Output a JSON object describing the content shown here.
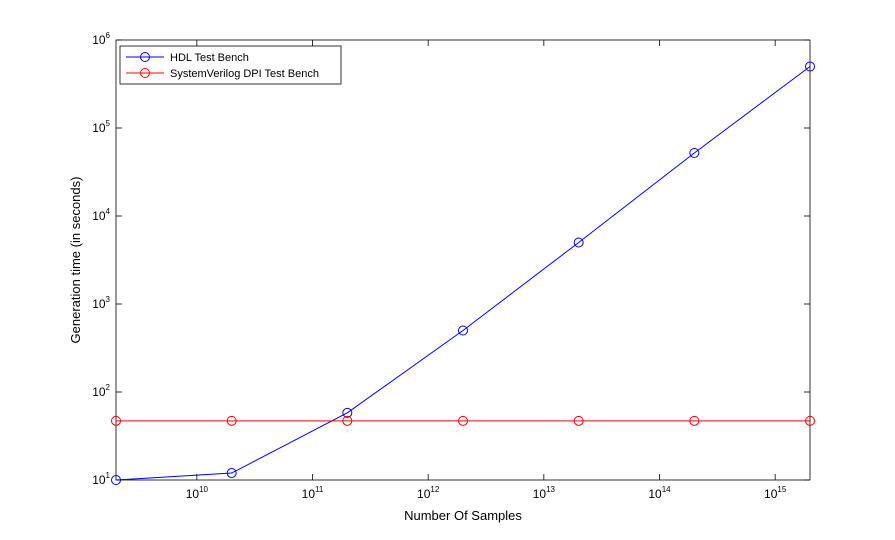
{
  "chart_data": {
    "type": "line",
    "xlabel": "Number Of Samples",
    "ylabel": "Generation time (in seconds)",
    "x": [
      2000000000,
      20000000000,
      200000000000,
      2000000000000,
      20000000000000,
      200000000000000,
      2000000000000000
    ],
    "series": [
      {
        "name": "HDL Test Bench",
        "color": "#0000ff",
        "values": [
          10,
          12,
          58,
          500,
          5000,
          52000,
          500000
        ]
      },
      {
        "name": "SystemVerilog DPI Test Bench",
        "color": "#ff0000",
        "values": [
          47,
          47,
          47,
          47,
          47,
          47,
          47
        ]
      }
    ],
    "xscale": "log",
    "yscale": "log",
    "xlim": [
      2000000000,
      2000000000000000
    ],
    "ylim": [
      10,
      1000000
    ],
    "xticks": [
      {
        "value": 10000000000,
        "label": "10^10"
      },
      {
        "value": 100000000000,
        "label": "10^11"
      },
      {
        "value": 1000000000000,
        "label": "10^12"
      },
      {
        "value": 10000000000000,
        "label": "10^13"
      },
      {
        "value": 100000000000000,
        "label": "10^14"
      },
      {
        "value": 1000000000000000,
        "label": "10^15"
      }
    ],
    "yticks": [
      {
        "value": 10,
        "label": "10^1"
      },
      {
        "value": 100,
        "label": "10^2"
      },
      {
        "value": 1000,
        "label": "10^3"
      },
      {
        "value": 10000,
        "label": "10^4"
      },
      {
        "value": 100000,
        "label": "10^5"
      },
      {
        "value": 1000000,
        "label": "10^6"
      }
    ],
    "grid": false,
    "legend": "upper-left"
  }
}
